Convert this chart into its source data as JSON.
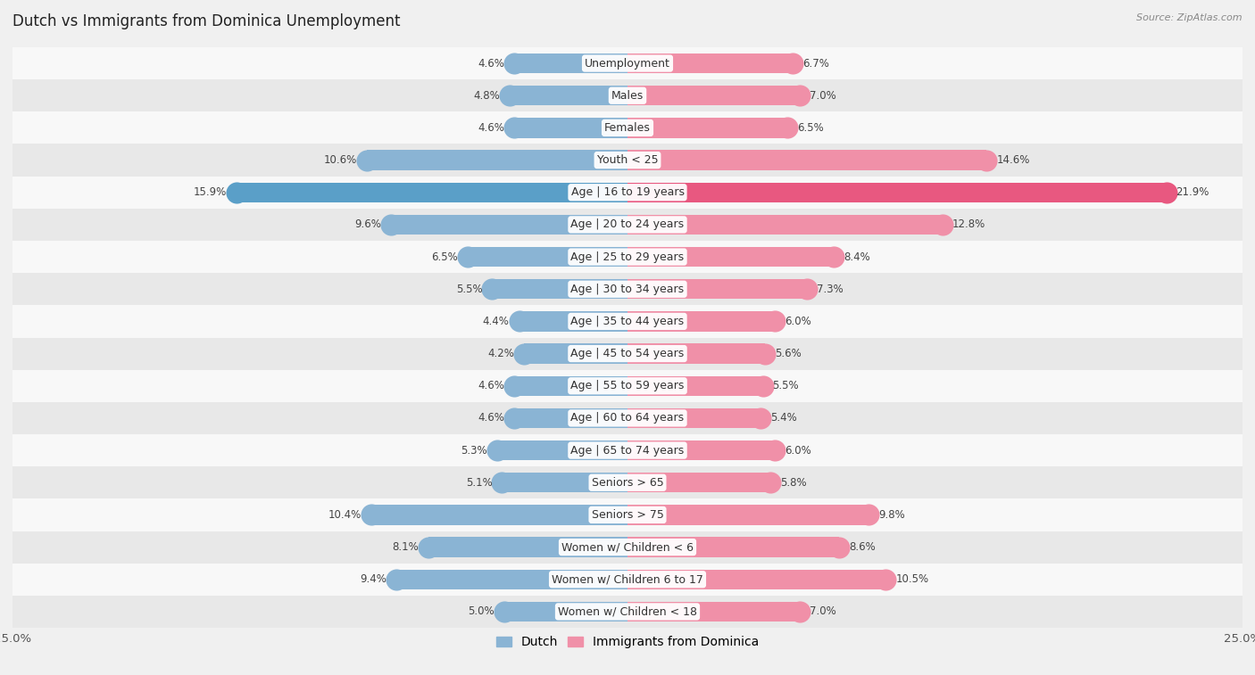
{
  "title": "Dutch vs Immigrants from Dominica Unemployment",
  "source": "Source: ZipAtlas.com",
  "categories": [
    "Unemployment",
    "Males",
    "Females",
    "Youth < 25",
    "Age | 16 to 19 years",
    "Age | 20 to 24 years",
    "Age | 25 to 29 years",
    "Age | 30 to 34 years",
    "Age | 35 to 44 years",
    "Age | 45 to 54 years",
    "Age | 55 to 59 years",
    "Age | 60 to 64 years",
    "Age | 65 to 74 years",
    "Seniors > 65",
    "Seniors > 75",
    "Women w/ Children < 6",
    "Women w/ Children 6 to 17",
    "Women w/ Children < 18"
  ],
  "dutch_values": [
    4.6,
    4.8,
    4.6,
    10.6,
    15.9,
    9.6,
    6.5,
    5.5,
    4.4,
    4.2,
    4.6,
    4.6,
    5.3,
    5.1,
    10.4,
    8.1,
    9.4,
    5.0
  ],
  "dominica_values": [
    6.7,
    7.0,
    6.5,
    14.6,
    21.9,
    12.8,
    8.4,
    7.3,
    6.0,
    5.6,
    5.5,
    5.4,
    6.0,
    5.8,
    9.8,
    8.6,
    10.5,
    7.0
  ],
  "dutch_color": "#8ab4d4",
  "dominica_color": "#f090a8",
  "highlight_dutch_color": "#5a9fc8",
  "highlight_dominica_color": "#e85880",
  "background_color": "#f0f0f0",
  "row_color_light": "#f8f8f8",
  "row_color_dark": "#e8e8e8",
  "axis_limit": 25.0,
  "bar_height": 0.62,
  "label_fontsize": 9.0,
  "title_fontsize": 12,
  "legend_fontsize": 10,
  "value_label_fontsize": 8.5
}
